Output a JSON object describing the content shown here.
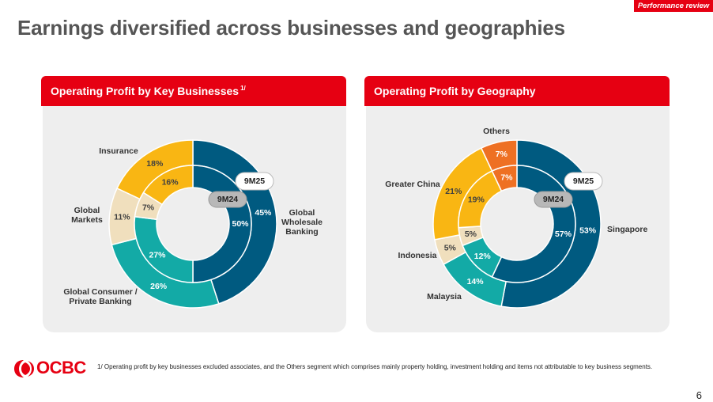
{
  "header": {
    "tag": "Performance review",
    "title": "Earnings diversified across businesses and geographies"
  },
  "panels": [
    {
      "title": "Operating Profit by Key Businesses",
      "title_sup": "1/"
    },
    {
      "title": "Operating Profit by Geography"
    }
  ],
  "chart_data": [
    {
      "type": "donut",
      "title": "Operating Profit by Key Businesses",
      "outer_label": "9M25",
      "inner_label": "9M24",
      "categories": [
        "Global Wholesale Banking",
        "Global Consumer / Private Banking",
        "Global Markets",
        "Insurance"
      ],
      "series": [
        {
          "name": "9M25",
          "values": [
            45,
            26,
            11,
            18
          ],
          "labels": [
            "45%",
            "26%",
            "11%",
            "18%"
          ]
        },
        {
          "name": "9M24",
          "values": [
            50,
            27,
            7,
            16
          ],
          "labels": [
            "50%",
            "27%",
            "7%",
            "16%"
          ]
        }
      ],
      "colors": [
        "#005a80",
        "#13aaa6",
        "#f0dfbd",
        "#f9b613"
      ]
    },
    {
      "type": "donut",
      "title": "Operating Profit by Geography",
      "outer_label": "9M25",
      "inner_label": "9M24",
      "categories": [
        "Singapore",
        "Malaysia",
        "Indonesia",
        "Greater China",
        "Others"
      ],
      "series": [
        {
          "name": "9M25",
          "values": [
            53,
            14,
            5,
            21,
            7
          ],
          "labels": [
            "53%",
            "14%",
            "5%",
            "21%",
            "7%"
          ]
        },
        {
          "name": "9M24",
          "values": [
            57,
            12,
            5,
            19,
            7
          ],
          "labels": [
            "57%",
            "12%",
            "5%",
            "19%",
            "7%"
          ]
        }
      ],
      "colors": [
        "#005a80",
        "#13aaa6",
        "#f0dfbd",
        "#f9b613",
        "#ee7023"
      ]
    }
  ],
  "category_labels": [
    [
      "Global\nWholesale\nBanking",
      "Global Consumer /\nPrivate Banking",
      "Global\nMarkets",
      "Insurance"
    ],
    [
      "Singapore",
      "Malaysia",
      "Indonesia",
      "Greater China",
      "Others"
    ]
  ],
  "footer": {
    "logo_text": "OCBC",
    "footnote": "1/ Operating profit by key businesses excluded associates, and the Others segment which comprises mainly property holding, investment holding and items not attributable to key business segments.",
    "page_number": "6"
  }
}
